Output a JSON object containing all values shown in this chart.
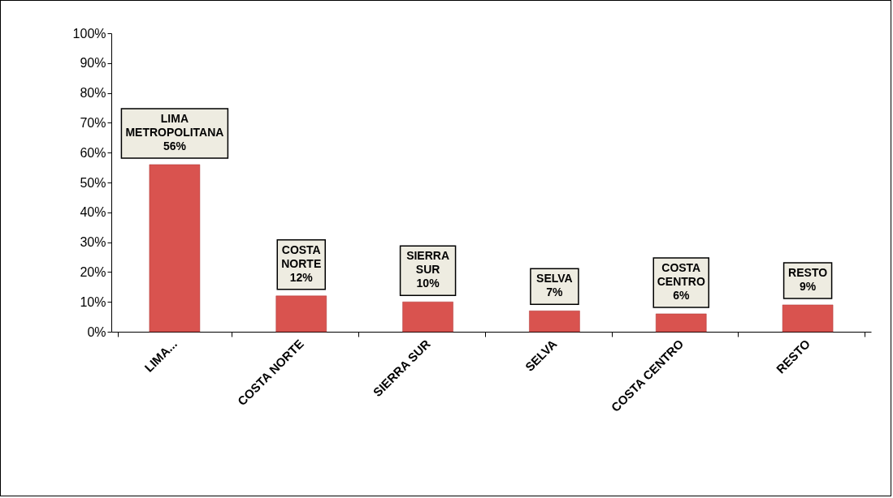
{
  "chart_data": {
    "type": "bar",
    "categories": [
      "LIMA...",
      "COSTA NORTE",
      "SIERRA SUR",
      "SELVA",
      "COSTA CENTRO",
      "RESTO"
    ],
    "values": [
      56,
      12,
      10,
      7,
      6,
      9
    ],
    "color": "#d9534f",
    "value_labels": [
      "LIMA METROPOLITANA 56%",
      "COSTA NORTE 12%",
      "SIERRA SUR 10%",
      "SELVA 7%",
      "COSTA CENTRO 6%",
      "RESTO 9%"
    ],
    "ylim": [
      0,
      100
    ],
    "yticks": [
      {
        "value": 0,
        "label": "0%"
      },
      {
        "value": 10,
        "label": "10%"
      },
      {
        "value": 20,
        "label": "20%"
      },
      {
        "value": 30,
        "label": "30%"
      },
      {
        "value": 40,
        "label": "40%"
      },
      {
        "value": 50,
        "label": "50%"
      },
      {
        "value": 60,
        "label": "60%"
      },
      {
        "value": 70,
        "label": "70%"
      },
      {
        "value": 80,
        "label": "80%"
      },
      {
        "value": 90,
        "label": "90%"
      },
      {
        "value": 100,
        "label": "100%"
      }
    ],
    "grid": false
  }
}
